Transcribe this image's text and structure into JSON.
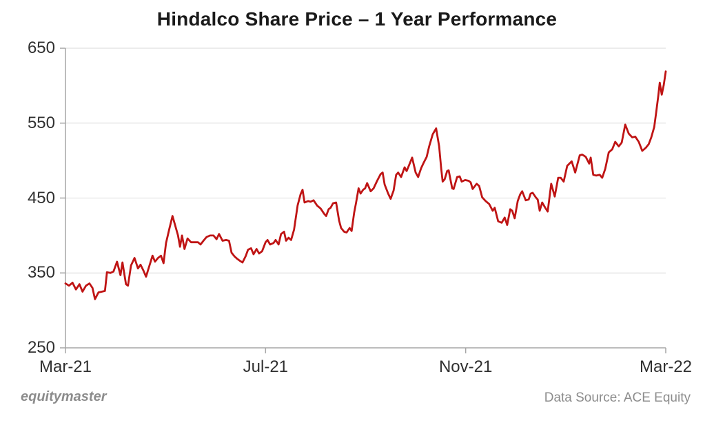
{
  "footer": {
    "brand": "equitymaster",
    "source": "Data Source: ACE Equity"
  },
  "colors": {
    "line": "#bf1414",
    "grid": "#d9d9d9",
    "axis": "#a6a6a6",
    "title": "#1a1a1a",
    "tick_label": "#303030",
    "footer_text": "#8c8c8c"
  },
  "chart_data": {
    "type": "line",
    "title": "Hindalco Share Price – 1 Year Performance",
    "xlabel": "",
    "ylabel": "",
    "x_tick_labels": [
      "Mar-21",
      "Jul-21",
      "Nov-21",
      "Mar-22"
    ],
    "x_tick_months": [
      0,
      4,
      8,
      12
    ],
    "y_ticks": [
      650,
      550,
      450,
      350,
      250
    ],
    "ylim": [
      250,
      650
    ],
    "xlim_months": [
      0,
      12
    ],
    "grid": "horizontal-only",
    "legend": "none",
    "series": [
      {
        "name": "Hindalco share price (Rs)",
        "color": "#bf1414",
        "points": [
          [
            0,
            336
          ],
          [
            0.07,
            333
          ],
          [
            0.14,
            337
          ],
          [
            0.21,
            328
          ],
          [
            0.28,
            335
          ],
          [
            0.34,
            325
          ],
          [
            0.41,
            333
          ],
          [
            0.48,
            336
          ],
          [
            0.54,
            330
          ],
          [
            0.59,
            315
          ],
          [
            0.66,
            324
          ],
          [
            0.73,
            325
          ],
          [
            0.79,
            326
          ],
          [
            0.83,
            351
          ],
          [
            0.9,
            350
          ],
          [
            0.96,
            352
          ],
          [
            1.03,
            365
          ],
          [
            1.1,
            347
          ],
          [
            1.14,
            364
          ],
          [
            1.21,
            335
          ],
          [
            1.25,
            333
          ],
          [
            1.31,
            360
          ],
          [
            1.38,
            370
          ],
          [
            1.45,
            356
          ],
          [
            1.5,
            361
          ],
          [
            1.56,
            353
          ],
          [
            1.61,
            345
          ],
          [
            1.68,
            360
          ],
          [
            1.74,
            373
          ],
          [
            1.79,
            365
          ],
          [
            1.85,
            370
          ],
          [
            1.91,
            373
          ],
          [
            1.96,
            363
          ],
          [
            2.01,
            390
          ],
          [
            2.08,
            410
          ],
          [
            2.14,
            426
          ],
          [
            2.19,
            414
          ],
          [
            2.25,
            400
          ],
          [
            2.29,
            385
          ],
          [
            2.33,
            400
          ],
          [
            2.38,
            382
          ],
          [
            2.44,
            396
          ],
          [
            2.51,
            391
          ],
          [
            2.65,
            391
          ],
          [
            2.7,
            388
          ],
          [
            2.77,
            394
          ],
          [
            2.82,
            398
          ],
          [
            2.89,
            400
          ],
          [
            2.96,
            400
          ],
          [
            3.02,
            395
          ],
          [
            3.07,
            402
          ],
          [
            3.14,
            393
          ],
          [
            3.21,
            394
          ],
          [
            3.27,
            393
          ],
          [
            3.32,
            377
          ],
          [
            3.38,
            372
          ],
          [
            3.43,
            369
          ],
          [
            3.49,
            366
          ],
          [
            3.54,
            364
          ],
          [
            3.6,
            372
          ],
          [
            3.65,
            381
          ],
          [
            3.71,
            383
          ],
          [
            3.76,
            375
          ],
          [
            3.82,
            382
          ],
          [
            3.87,
            376
          ],
          [
            3.93,
            379
          ],
          [
            4,
            391
          ],
          [
            4.04,
            394
          ],
          [
            4.09,
            388
          ],
          [
            4.16,
            390
          ],
          [
            4.2,
            394
          ],
          [
            4.26,
            388
          ],
          [
            4.31,
            402
          ],
          [
            4.37,
            405
          ],
          [
            4.41,
            393
          ],
          [
            4.46,
            397
          ],
          [
            4.51,
            394
          ],
          [
            4.57,
            408
          ],
          [
            4.64,
            440
          ],
          [
            4.7,
            455
          ],
          [
            4.74,
            461
          ],
          [
            4.78,
            444
          ],
          [
            4.85,
            446
          ],
          [
            4.9,
            445
          ],
          [
            4.96,
            447
          ],
          [
            5.03,
            440
          ],
          [
            5.1,
            436
          ],
          [
            5.17,
            429
          ],
          [
            5.21,
            426
          ],
          [
            5.26,
            435
          ],
          [
            5.3,
            437
          ],
          [
            5.35,
            443
          ],
          [
            5.41,
            444
          ],
          [
            5.47,
            420
          ],
          [
            5.51,
            410
          ],
          [
            5.57,
            405
          ],
          [
            5.62,
            404
          ],
          [
            5.68,
            410
          ],
          [
            5.72,
            406
          ],
          [
            5.77,
            430
          ],
          [
            5.81,
            444
          ],
          [
            5.86,
            463
          ],
          [
            5.9,
            456
          ],
          [
            5.95,
            461
          ],
          [
            5.99,
            463
          ],
          [
            6.03,
            470
          ],
          [
            6.1,
            459
          ],
          [
            6.16,
            463
          ],
          [
            6.23,
            473
          ],
          [
            6.3,
            482
          ],
          [
            6.34,
            484
          ],
          [
            6.38,
            468
          ],
          [
            6.45,
            456
          ],
          [
            6.5,
            449
          ],
          [
            6.56,
            460
          ],
          [
            6.61,
            481
          ],
          [
            6.65,
            484
          ],
          [
            6.71,
            478
          ],
          [
            6.78,
            491
          ],
          [
            6.82,
            486
          ],
          [
            6.87,
            494
          ],
          [
            6.93,
            504
          ],
          [
            7,
            484
          ],
          [
            7.05,
            478
          ],
          [
            7.11,
            490
          ],
          [
            7.16,
            497
          ],
          [
            7.22,
            505
          ],
          [
            7.27,
            519
          ],
          [
            7.34,
            535
          ],
          [
            7.41,
            543
          ],
          [
            7.47,
            519
          ],
          [
            7.51,
            490
          ],
          [
            7.54,
            472
          ],
          [
            7.58,
            475
          ],
          [
            7.63,
            486
          ],
          [
            7.66,
            487
          ],
          [
            7.73,
            463
          ],
          [
            7.76,
            462
          ],
          [
            7.83,
            478
          ],
          [
            7.88,
            479
          ],
          [
            7.92,
            472
          ],
          [
            7.99,
            474
          ],
          [
            8.06,
            473
          ],
          [
            8.1,
            471
          ],
          [
            8.14,
            462
          ],
          [
            8.22,
            469
          ],
          [
            8.27,
            466
          ],
          [
            8.33,
            451
          ],
          [
            8.4,
            446
          ],
          [
            8.47,
            442
          ],
          [
            8.54,
            433
          ],
          [
            8.58,
            437
          ],
          [
            8.65,
            419
          ],
          [
            8.72,
            417
          ],
          [
            8.78,
            424
          ],
          [
            8.83,
            414
          ],
          [
            8.89,
            435
          ],
          [
            8.93,
            433
          ],
          [
            8.98,
            423
          ],
          [
            9.04,
            446
          ],
          [
            9.09,
            455
          ],
          [
            9.13,
            459
          ],
          [
            9.2,
            447
          ],
          [
            9.26,
            448
          ],
          [
            9.3,
            456
          ],
          [
            9.34,
            457
          ],
          [
            9.4,
            451
          ],
          [
            9.44,
            448
          ],
          [
            9.48,
            433
          ],
          [
            9.53,
            444
          ],
          [
            9.59,
            437
          ],
          [
            9.64,
            432
          ],
          [
            9.71,
            469
          ],
          [
            9.78,
            452
          ],
          [
            9.85,
            477
          ],
          [
            9.9,
            477
          ],
          [
            9.96,
            472
          ],
          [
            10.03,
            493
          ],
          [
            10.12,
            499
          ],
          [
            10.19,
            484
          ],
          [
            10.28,
            507
          ],
          [
            10.33,
            508
          ],
          [
            10.4,
            505
          ],
          [
            10.47,
            496
          ],
          [
            10.5,
            504
          ],
          [
            10.55,
            481
          ],
          [
            10.61,
            480
          ],
          [
            10.68,
            481
          ],
          [
            10.73,
            477
          ],
          [
            10.79,
            489
          ],
          [
            10.86,
            511
          ],
          [
            10.93,
            515
          ],
          [
            10.99,
            525
          ],
          [
            11.06,
            519
          ],
          [
            11.12,
            524
          ],
          [
            11.19,
            548
          ],
          [
            11.26,
            536
          ],
          [
            11.33,
            531
          ],
          [
            11.39,
            532
          ],
          [
            11.46,
            525
          ],
          [
            11.53,
            513
          ],
          [
            11.6,
            517
          ],
          [
            11.66,
            522
          ],
          [
            11.71,
            531
          ],
          [
            11.77,
            545
          ],
          [
            11.81,
            565
          ],
          [
            11.85,
            586
          ],
          [
            11.88,
            604
          ],
          [
            11.92,
            588
          ],
          [
            11.96,
            601
          ],
          [
            12,
            619
          ]
        ]
      }
    ]
  }
}
